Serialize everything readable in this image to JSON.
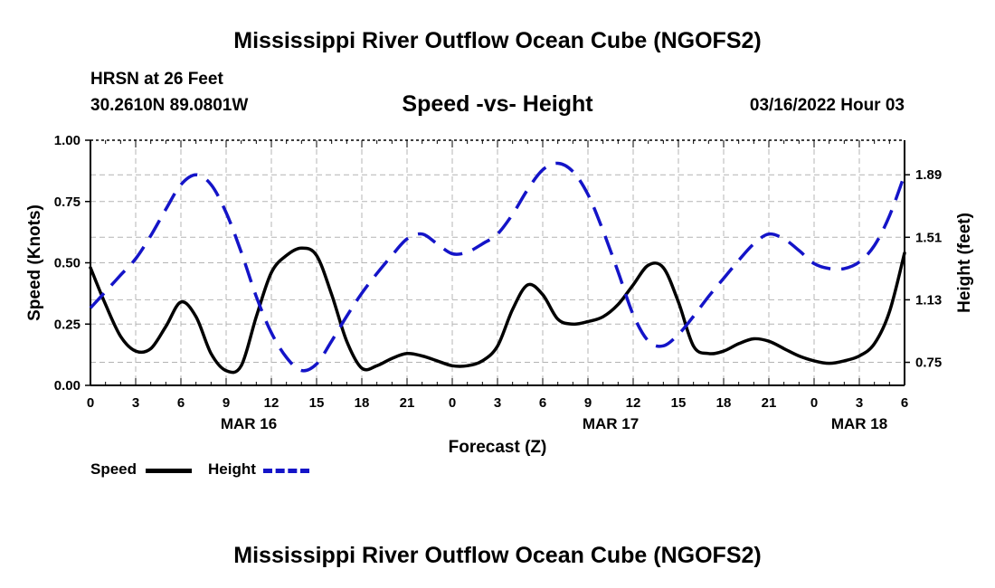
{
  "header": {
    "title": "Mississippi River Outflow Ocean Cube (NGOFS2)",
    "station": "HRSN at 26 Feet",
    "coords": "30.2610N  89.0801W",
    "subtitle": "Speed -vs- Height",
    "datetime": "03/16/2022 Hour 03"
  },
  "footer": {
    "title": "Mississippi River Outflow Ocean Cube (NGOFS2)"
  },
  "legend": {
    "speed_label": "Speed",
    "height_label": "Height"
  },
  "colors": {
    "speed": "#000000",
    "height": "#1414c8",
    "grid": "#b4b4b4"
  },
  "chart_data": {
    "type": "line",
    "xlabel": "Forecast (Z)",
    "ylabel": "Speed (Knots)",
    "y2label": "Height (feet)",
    "xlim": [
      0,
      54
    ],
    "ylim": [
      0,
      1
    ],
    "y2lim": [
      0.61,
      2.1
    ],
    "x_ticks": [
      0,
      3,
      6,
      9,
      12,
      15,
      18,
      21,
      24,
      27,
      30,
      33,
      36,
      39,
      42,
      45,
      48,
      51,
      54
    ],
    "x_tick_labels": [
      "0",
      "3",
      "6",
      "9",
      "12",
      "15",
      "18",
      "21",
      "0",
      "3",
      "6",
      "9",
      "12",
      "15",
      "18",
      "21",
      "0",
      "3",
      "6"
    ],
    "date_labels": [
      {
        "x": 10.5,
        "label": "MAR 16"
      },
      {
        "x": 34.5,
        "label": "MAR 17"
      },
      {
        "x": 51,
        "label": "MAR 18"
      }
    ],
    "y_ticks": [
      0,
      0.25,
      0.5,
      0.75,
      1.0
    ],
    "y_tick_labels": [
      "0.00",
      "0.25",
      "0.50",
      "0.75",
      "1.00"
    ],
    "y2_ticks": [
      0.75,
      1.13,
      1.51,
      1.89
    ],
    "y2_tick_labels": [
      "0.75",
      "1.13",
      "1.51",
      "1.89"
    ],
    "grid": true,
    "legend_position": "bottom-left",
    "series": [
      {
        "name": "Speed",
        "axis": "left",
        "style": "solid",
        "x": [
          0,
          1,
          2,
          3,
          4,
          5,
          6,
          7,
          8,
          9,
          10,
          11,
          12,
          13,
          14,
          15,
          16,
          17,
          18,
          19,
          20,
          21,
          22,
          23,
          24,
          25,
          26,
          27,
          28,
          29,
          30,
          31,
          32,
          33,
          34,
          35,
          36,
          37,
          38,
          39,
          40,
          41,
          42,
          43,
          44,
          45,
          46,
          47,
          48,
          49,
          50,
          51,
          52,
          53,
          54
        ],
        "values": [
          0.48,
          0.33,
          0.2,
          0.14,
          0.15,
          0.24,
          0.34,
          0.28,
          0.13,
          0.06,
          0.08,
          0.28,
          0.46,
          0.53,
          0.56,
          0.53,
          0.37,
          0.18,
          0.07,
          0.08,
          0.11,
          0.13,
          0.12,
          0.1,
          0.08,
          0.08,
          0.1,
          0.16,
          0.31,
          0.41,
          0.37,
          0.27,
          0.25,
          0.26,
          0.28,
          0.33,
          0.41,
          0.49,
          0.48,
          0.34,
          0.16,
          0.13,
          0.14,
          0.17,
          0.19,
          0.18,
          0.15,
          0.12,
          0.1,
          0.09,
          0.1,
          0.12,
          0.17,
          0.3,
          0.54
        ]
      },
      {
        "name": "Height",
        "axis": "right",
        "style": "dashed",
        "x": [
          0,
          1,
          2,
          3,
          4,
          5,
          6,
          7,
          8,
          9,
          10,
          11,
          12,
          13,
          14,
          15,
          16,
          17,
          18,
          19,
          20,
          21,
          22,
          23,
          24,
          25,
          26,
          27,
          28,
          29,
          30,
          31,
          32,
          33,
          34,
          35,
          36,
          37,
          38,
          39,
          40,
          41,
          42,
          43,
          44,
          45,
          46,
          47,
          48,
          49,
          50,
          51,
          52,
          53,
          54
        ],
        "values": [
          1.08,
          1.18,
          1.28,
          1.38,
          1.52,
          1.68,
          1.83,
          1.89,
          1.83,
          1.66,
          1.42,
          1.15,
          0.93,
          0.78,
          0.7,
          0.74,
          0.88,
          1.03,
          1.17,
          1.29,
          1.4,
          1.5,
          1.53,
          1.47,
          1.41,
          1.42,
          1.47,
          1.53,
          1.65,
          1.8,
          1.92,
          1.96,
          1.91,
          1.77,
          1.55,
          1.3,
          1.04,
          0.88,
          0.85,
          0.92,
          1.03,
          1.15,
          1.26,
          1.37,
          1.47,
          1.53,
          1.5,
          1.43,
          1.35,
          1.32,
          1.32,
          1.36,
          1.46,
          1.64,
          1.89
        ]
      }
    ]
  }
}
